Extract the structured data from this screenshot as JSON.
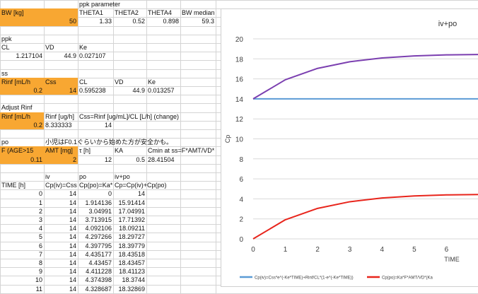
{
  "sheet": {
    "rows": [
      [
        {
          "t": ""
        },
        {
          "t": ""
        },
        {
          "t": "ppk parameter",
          "c": 2
        }
      ],
      [
        {
          "t": "BW [kg]",
          "c": 0,
          "f": 1
        },
        {
          "t": "",
          "c": 1,
          "f": 1
        },
        {
          "t": "THETA1",
          "c": 2
        },
        {
          "t": "THETA2",
          "c": 3
        },
        {
          "t": "THETA4",
          "c": 4
        },
        {
          "t": "BW median",
          "c": 5
        }
      ],
      [
        {
          "t": "50",
          "c": 1,
          "f": 1,
          "r": 1
        },
        {
          "t": "1.33",
          "c": 2,
          "r": 1
        },
        {
          "t": "0.52",
          "c": 3,
          "r": 1
        },
        {
          "t": "0.898",
          "c": 4,
          "r": 1
        },
        {
          "t": "59.3",
          "c": 5,
          "r": 1
        },
        {
          "t": "",
          "c": 0,
          "f": 1
        }
      ],
      [],
      [
        {
          "t": "ppk",
          "c": 0
        }
      ],
      [
        {
          "t": "CL",
          "c": 0
        },
        {
          "t": "VD",
          "c": 1
        },
        {
          "t": "Ke",
          "c": 2
        }
      ],
      [
        {
          "t": "1.217104",
          "c": 0,
          "r": 1
        },
        {
          "t": "44.9",
          "c": 1,
          "r": 1
        },
        {
          "t": "0.027107",
          "c": 2
        }
      ],
      [],
      [
        {
          "t": "ss",
          "c": 0
        }
      ],
      [
        {
          "t": "Rinf [mL/h",
          "c": 0,
          "f": 1
        },
        {
          "t": "Css",
          "c": 1,
          "f": 1
        },
        {
          "t": "CL",
          "c": 2
        },
        {
          "t": "VD",
          "c": 3
        },
        {
          "t": "Ke",
          "c": 4
        }
      ],
      [
        {
          "t": "0.2",
          "c": 0,
          "f": 1,
          "r": 1
        },
        {
          "t": "14",
          "c": 1,
          "f": 1,
          "r": 1
        },
        {
          "t": "0.595238",
          "c": 2
        },
        {
          "t": "44.9",
          "c": 3,
          "r": 1
        },
        {
          "t": "0.013257",
          "c": 4
        }
      ],
      [],
      [
        {
          "t": "Adjust Rinf",
          "c": 0
        }
      ],
      [
        {
          "t": "Rinf [mL/h",
          "c": 0,
          "f": 1
        },
        {
          "t": "Rinf [ug/h]",
          "c": 1
        },
        {
          "t": "Css=Rinf [ug/mL]/CL [L/h] (change)",
          "c": 2
        }
      ],
      [
        {
          "t": "0.2",
          "c": 0,
          "f": 1,
          "r": 1
        },
        {
          "t": "8.333333",
          "c": 1
        },
        {
          "t": "14",
          "c": 2,
          "r": 1
        }
      ],
      [],
      [
        {
          "t": "po",
          "c": 0
        },
        {
          "t": "小児はF0.1ぐらいから始めた方が安全かも。",
          "c": 1
        }
      ],
      [
        {
          "t": "F (AGE>15",
          "c": 0,
          "f": 1
        },
        {
          "t": "AMT [mg]",
          "c": 1,
          "f": 1
        },
        {
          "t": "τ  [h]",
          "c": 2
        },
        {
          "t": "KA",
          "c": 3
        },
        {
          "t": "Cmin at ss=F*AMT/VD*",
          "c": 4
        }
      ],
      [
        {
          "t": "0.11",
          "c": 0,
          "f": 1,
          "r": 1
        },
        {
          "t": "2",
          "c": 1,
          "f": 1,
          "r": 1
        },
        {
          "t": "12",
          "c": 2,
          "r": 1
        },
        {
          "t": "0.5",
          "c": 3,
          "r": 1
        },
        {
          "t": "28.41504",
          "c": 4
        }
      ],
      [],
      [
        {
          "t": "",
          "c": 0
        },
        {
          "t": "iv",
          "c": 1
        },
        {
          "t": "po",
          "c": 2
        },
        {
          "t": "iv+po",
          "c": 3
        }
      ],
      [
        {
          "t": "TIME [h]",
          "c": 0
        },
        {
          "t": "Cp(iv)=Css",
          "c": 1
        },
        {
          "t": "Cp(po)=Ka*",
          "c": 2
        },
        {
          "t": "Cp=Cp(iv)+Cp(po)",
          "c": 3
        }
      ],
      [
        {
          "t": "0",
          "c": 0,
          "r": 1
        },
        {
          "t": "14",
          "c": 1,
          "r": 1
        },
        {
          "t": "0",
          "c": 2,
          "r": 1
        },
        {
          "t": "14",
          "c": 3,
          "r": 1
        }
      ],
      [
        {
          "t": "1",
          "c": 0,
          "r": 1
        },
        {
          "t": "14",
          "c": 1,
          "r": 1
        },
        {
          "t": "1.914136",
          "c": 2,
          "r": 1
        },
        {
          "t": "15.91414",
          "c": 3,
          "r": 1
        }
      ],
      [
        {
          "t": "2",
          "c": 0,
          "r": 1
        },
        {
          "t": "14",
          "c": 1,
          "r": 1
        },
        {
          "t": "3.04991",
          "c": 2,
          "r": 1
        },
        {
          "t": "17.04991",
          "c": 3,
          "r": 1
        }
      ],
      [
        {
          "t": "3",
          "c": 0,
          "r": 1
        },
        {
          "t": "14",
          "c": 1,
          "r": 1
        },
        {
          "t": "3.713915",
          "c": 2,
          "r": 1
        },
        {
          "t": "17.71392",
          "c": 3,
          "r": 1
        }
      ],
      [
        {
          "t": "4",
          "c": 0,
          "r": 1
        },
        {
          "t": "14",
          "c": 1,
          "r": 1
        },
        {
          "t": "4.092106",
          "c": 2,
          "r": 1
        },
        {
          "t": "18.09211",
          "c": 3,
          "r": 1
        }
      ],
      [
        {
          "t": "5",
          "c": 0,
          "r": 1
        },
        {
          "t": "14",
          "c": 1,
          "r": 1
        },
        {
          "t": "4.297266",
          "c": 2,
          "r": 1
        },
        {
          "t": "18.29727",
          "c": 3,
          "r": 1
        }
      ],
      [
        {
          "t": "6",
          "c": 0,
          "r": 1
        },
        {
          "t": "14",
          "c": 1,
          "r": 1
        },
        {
          "t": "4.397795",
          "c": 2,
          "r": 1
        },
        {
          "t": "18.39779",
          "c": 3,
          "r": 1
        }
      ],
      [
        {
          "t": "7",
          "c": 0,
          "r": 1
        },
        {
          "t": "14",
          "c": 1,
          "r": 1
        },
        {
          "t": "4.435177",
          "c": 2,
          "r": 1
        },
        {
          "t": "18.43518",
          "c": 3,
          "r": 1
        }
      ],
      [
        {
          "t": "8",
          "c": 0,
          "r": 1
        },
        {
          "t": "14",
          "c": 1,
          "r": 1
        },
        {
          "t": "4.43457",
          "c": 2,
          "r": 1
        },
        {
          "t": "18.43457",
          "c": 3,
          "r": 1
        }
      ],
      [
        {
          "t": "9",
          "c": 0,
          "r": 1
        },
        {
          "t": "14",
          "c": 1,
          "r": 1
        },
        {
          "t": "4.411228",
          "c": 2,
          "r": 1
        },
        {
          "t": "18.41123",
          "c": 3,
          "r": 1
        }
      ],
      [
        {
          "t": "10",
          "c": 0,
          "r": 1
        },
        {
          "t": "14",
          "c": 1,
          "r": 1
        },
        {
          "t": "4.374398",
          "c": 2,
          "r": 1
        },
        {
          "t": "18.3744",
          "c": 3,
          "r": 1
        }
      ],
      [
        {
          "t": "11",
          "c": 0,
          "r": 1
        },
        {
          "t": "14",
          "c": 1,
          "r": 1
        },
        {
          "t": "4.328687",
          "c": 2,
          "r": 1
        },
        {
          "t": "18.32869",
          "c": 3,
          "r": 1
        }
      ]
    ]
  },
  "chart_data": {
    "type": "line",
    "title": "iv+po",
    "xlabel": "TIME",
    "ylabel": "Cp",
    "xlim": [
      0,
      7
    ],
    "ylim": [
      0,
      20
    ],
    "x_ticks": [
      "0",
      "1",
      "2",
      "3",
      "4",
      "5",
      "6"
    ],
    "y_ticks": [
      "0",
      "2",
      "4",
      "6",
      "8",
      "10",
      "12",
      "14",
      "16",
      "18",
      "20"
    ],
    "x": [
      0,
      1,
      2,
      3,
      4,
      5,
      6,
      7
    ],
    "series": [
      {
        "name": "Cp(iv)=Css*e^(-Ke*TIME)+Rinf/CL*(1-e^(-Ke*TIME))",
        "color": "#5b9bd5",
        "values": [
          14,
          14,
          14,
          14,
          14,
          14,
          14,
          14
        ]
      },
      {
        "name": "Cp(po)=Ka*F*AMT/VD*(Ka",
        "color": "#e8251c",
        "values": [
          0,
          1.914136,
          3.04991,
          3.713915,
          4.092106,
          4.297266,
          4.397795,
          4.435177
        ]
      },
      {
        "name": "",
        "color": "#7b3fb0",
        "values": [
          14,
          15.91414,
          17.04991,
          17.71392,
          18.09211,
          18.29727,
          18.39779,
          18.43518
        ]
      }
    ],
    "legend_position": "bottom",
    "grid": true
  }
}
